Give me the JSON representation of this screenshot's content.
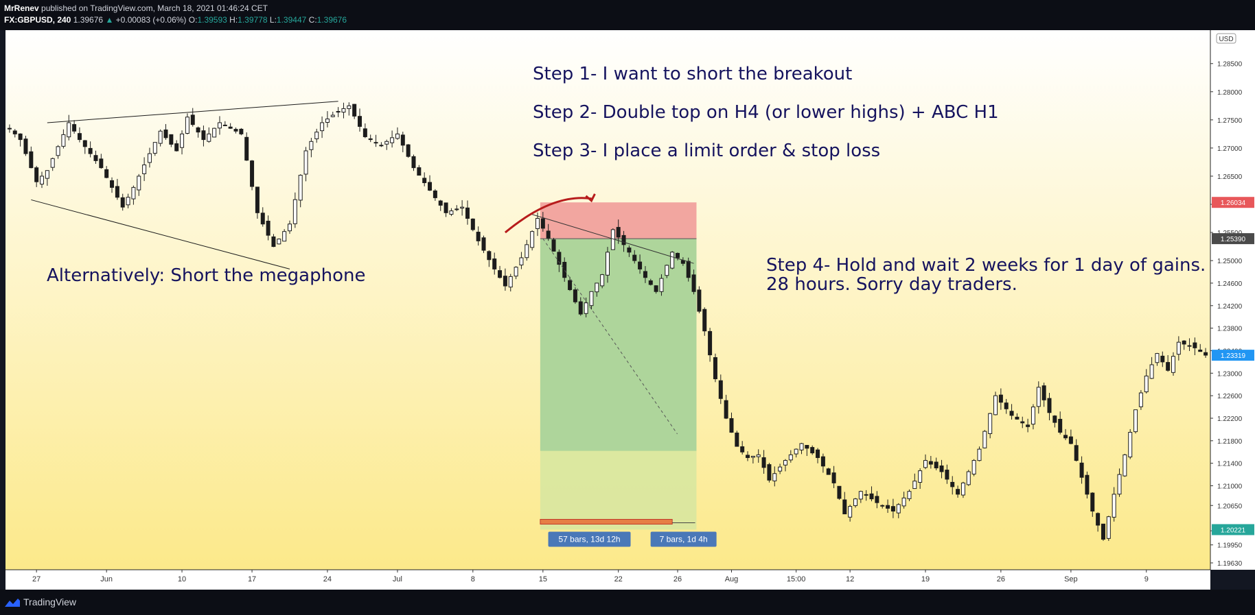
{
  "header": {
    "author": "MrRenev",
    "published": "published on TradingView.com, March 18, 2021 01:46:24 CET",
    "symbol": "FX:GBPUSD, 240",
    "last": "1.39676",
    "change": "+0.00083 (+0.06%)",
    "o_label": "O:",
    "o": "1.39593",
    "h_label": "H:",
    "h": "1.39778",
    "l_label": "L:",
    "l": "1.39447",
    "c_label": "C:",
    "c": "1.39676"
  },
  "footer": {
    "brand": "TradingView"
  },
  "colors": {
    "bg_top": "#ffffff",
    "bg_bottom": "#fce98a",
    "candle": "#1c1c1c",
    "stop_zone": "#f2a6a0",
    "target_zone": "#a8d39a",
    "annotation": "#15135e",
    "price_red": "#e8575a",
    "price_blue": "#2196f3",
    "price_green": "#26a69a",
    "arrow": "#b71c1c"
  },
  "chart_data": {
    "type": "candlestick",
    "symbol": "GBPUSD",
    "timeframe": "240",
    "currency": "USD",
    "ylim": [
      1.1963,
      1.2885
    ],
    "y_ticks": [
      "1.28500",
      "1.28000",
      "1.27500",
      "1.27000",
      "1.26500",
      "1.26000",
      "1.25500",
      "1.25000",
      "1.24600",
      "1.24200",
      "1.23800",
      "1.23400",
      "1.23000",
      "1.22600",
      "1.22200",
      "1.21800",
      "1.21400",
      "1.21000",
      "1.20650",
      "1.20200",
      "1.19950",
      "1.19630"
    ],
    "x_ticks": [
      {
        "label": "27",
        "i": 5
      },
      {
        "label": "Jun",
        "i": 18
      },
      {
        "label": "10",
        "i": 32
      },
      {
        "label": "17",
        "i": 45
      },
      {
        "label": "24",
        "i": 59
      },
      {
        "label": "Jul",
        "i": 72
      },
      {
        "label": "8",
        "i": 86
      },
      {
        "label": "15",
        "i": 99
      },
      {
        "label": "22",
        "i": 113
      },
      {
        "label": "26",
        "i": 124
      },
      {
        "label": "Aug",
        "i": 134
      },
      {
        "label": "15:00",
        "i": 146
      },
      {
        "label": "12",
        "i": 156
      },
      {
        "label": "19",
        "i": 170
      },
      {
        "label": "26",
        "i": 184
      },
      {
        "label": "Sep",
        "i": 197
      },
      {
        "label": "9",
        "i": 211
      }
    ],
    "series_path": [
      [
        0,
        1.2735
      ],
      [
        2,
        1.2715
      ],
      [
        5,
        1.264
      ],
      [
        7,
        1.266
      ],
      [
        11,
        1.2745
      ],
      [
        13,
        1.2715
      ],
      [
        17,
        1.2665
      ],
      [
        21,
        1.2595
      ],
      [
        23,
        1.263
      ],
      [
        28,
        1.273
      ],
      [
        31,
        1.2695
      ],
      [
        33,
        1.2755
      ],
      [
        36,
        1.2715
      ],
      [
        39,
        1.2745
      ],
      [
        43,
        1.2725
      ],
      [
        46,
        1.2585
      ],
      [
        49,
        1.2525
      ],
      [
        52,
        1.2565
      ],
      [
        55,
        1.2695
      ],
      [
        58,
        1.2745
      ],
      [
        61,
        1.2765
      ],
      [
        63,
        1.2775
      ],
      [
        66,
        1.272
      ],
      [
        69,
        1.2705
      ],
      [
        72,
        1.2725
      ],
      [
        75,
        1.2665
      ],
      [
        78,
        1.2625
      ],
      [
        81,
        1.2585
      ],
      [
        84,
        1.2595
      ],
      [
        87,
        1.2535
      ],
      [
        90,
        1.2485
      ],
      [
        92,
        1.2455
      ],
      [
        95,
        1.2505
      ],
      [
        98,
        1.2575
      ],
      [
        100,
        1.254
      ],
      [
        103,
        1.247
      ],
      [
        106,
        1.2405
      ],
      [
        108,
        1.2445
      ],
      [
        110,
        1.2475
      ],
      [
        112,
        1.2555
      ],
      [
        115,
        1.2515
      ],
      [
        118,
        1.247
      ],
      [
        120,
        1.2445
      ],
      [
        123,
        1.2515
      ],
      [
        125,
        1.2495
      ],
      [
        127,
        1.2445
      ],
      [
        129,
        1.2375
      ],
      [
        131,
        1.229
      ],
      [
        133,
        1.222
      ],
      [
        135,
        1.217
      ],
      [
        137,
        1.215
      ],
      [
        139,
        1.2155
      ],
      [
        141,
        1.211
      ],
      [
        144,
        1.2145
      ],
      [
        147,
        1.2175
      ],
      [
        150,
        1.215
      ],
      [
        153,
        1.2105
      ],
      [
        155,
        1.205
      ],
      [
        158,
        1.209
      ],
      [
        161,
        1.207
      ],
      [
        164,
        1.2055
      ],
      [
        167,
        1.209
      ],
      [
        170,
        1.2145
      ],
      [
        173,
        1.2125
      ],
      [
        176,
        1.2085
      ],
      [
        180,
        1.2165
      ],
      [
        183,
        1.226
      ],
      [
        186,
        1.2225
      ],
      [
        189,
        1.2205
      ],
      [
        191,
        1.2275
      ],
      [
        193,
        1.223
      ],
      [
        195,
        1.2195
      ],
      [
        197,
        1.2175
      ],
      [
        199,
        1.2115
      ],
      [
        201,
        1.2055
      ],
      [
        203,
        1.2005
      ],
      [
        205,
        1.2085
      ],
      [
        207,
        1.2155
      ],
      [
        209,
        1.2235
      ],
      [
        211,
        1.2295
      ],
      [
        213,
        1.2335
      ],
      [
        215,
        1.2305
      ],
      [
        217,
        1.2355
      ],
      [
        220,
        1.2345
      ],
      [
        222,
        1.2332
      ]
    ],
    "price_labels": [
      {
        "value": 1.26034,
        "text": "1.26034",
        "color": "#e8575a"
      },
      {
        "value": 1.2539,
        "text": "1.25390",
        "color": "#4a4a4a"
      },
      {
        "value": 1.23319,
        "text": "1.23319",
        "color": "#2196f3"
      },
      {
        "value": 1.20221,
        "text": "1.20221",
        "color": "#26a69a"
      }
    ],
    "annotations": [
      {
        "text": "Step 1- I want to short the breakout"
      },
      {
        "text": "Step 2- Double top on H4 (or lower highs) + ABC H1"
      },
      {
        "text": "Step 3- I place a limit order & stop loss"
      },
      {
        "text": "Step 4- Hold and wait 2 weeks for 1 day of gains."
      },
      {
        "text": "28 hours. Sorry day traders."
      },
      {
        "text": "Alternatively: Short the megaphone"
      }
    ],
    "trendlines": [
      {
        "from": [
          7,
          1.2745
        ],
        "to": [
          61,
          1.2783
        ]
      },
      {
        "from": [
          4,
          1.2608
        ],
        "to": [
          52,
          1.2485
        ]
      },
      {
        "from": [
          97,
          1.2582
        ],
        "to": [
          127,
          1.2495
        ]
      }
    ],
    "position": {
      "side": "short",
      "start_i": 99,
      "end_i": 127,
      "stop": 1.26034,
      "entry": 1.2539,
      "target": 1.20221,
      "fill_level": 1.2162
    },
    "labels": [
      "57 bars, 13d 12h",
      "7 bars, 1d 4h"
    ]
  }
}
